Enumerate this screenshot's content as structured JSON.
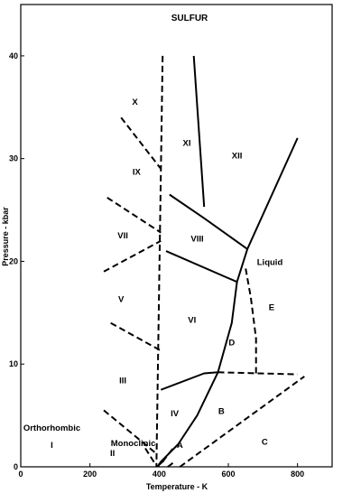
{
  "chart_data": {
    "type": "line",
    "title": "SULFUR",
    "xlabel": "Temperature - K",
    "ylabel": "Pressure - kbar",
    "xlim": [
      0,
      900
    ],
    "ylim": [
      0,
      45
    ],
    "xticks": [
      0,
      200,
      400,
      600,
      800
    ],
    "yticks": [
      0,
      10,
      20,
      30,
      40
    ],
    "grid": false,
    "legend": "none",
    "solid_boundaries": [
      {
        "x": [
          500,
          530
        ],
        "y": [
          40,
          25.3
        ]
      },
      {
        "x": [
          430,
          530,
          655
        ],
        "y": [
          26.5,
          24.2,
          21.2
        ]
      },
      {
        "x": [
          655,
          800
        ],
        "y": [
          21.2,
          32
        ]
      },
      {
        "x": [
          420,
          625,
          655
        ],
        "y": [
          21,
          18,
          21.2
        ]
      },
      {
        "x": [
          405,
          530,
          570
        ],
        "y": [
          7.5,
          9.1,
          9.2
        ]
      },
      {
        "x": [
          625,
          610,
          570,
          510,
          455,
          405,
          395
        ],
        "y": [
          18,
          14,
          9.2,
          5,
          2.2,
          0.5,
          0
        ]
      }
    ],
    "dashed_boundaries": [
      {
        "x": [
          410,
          392
        ],
        "y": [
          40,
          0
        ]
      },
      {
        "x": [
          290,
          405
        ],
        "y": [
          34,
          29
        ]
      },
      {
        "x": [
          250,
          405
        ],
        "y": [
          26.2,
          22.8
        ]
      },
      {
        "x": [
          240,
          405
        ],
        "y": [
          19,
          22
        ]
      },
      {
        "x": [
          260,
          405
        ],
        "y": [
          14,
          11.3
        ]
      },
      {
        "x": [
          240,
          395
        ],
        "y": [
          5.5,
          1.2
        ]
      },
      {
        "x": [
          650,
          665,
          680,
          680
        ],
        "y": [
          19.3,
          16.5,
          12.5,
          9
        ]
      },
      {
        "x": [
          570,
          800
        ],
        "y": [
          9.2,
          9
        ]
      },
      {
        "x": [
          460,
          820
        ],
        "y": [
          0,
          8.8
        ]
      },
      {
        "x": [
          400,
          420
        ],
        "y": [
          0.2,
          0.8
        ]
      },
      {
        "x": [
          410,
          440
        ],
        "y": [
          0.5,
          1.8
        ]
      },
      {
        "x": [
          425,
          445
        ],
        "y": [
          0,
          0.5
        ]
      },
      {
        "x": [
          360,
          390
        ],
        "y": [
          1.8,
          0.2
        ]
      }
    ],
    "region_labels": [
      {
        "text": "X",
        "x": 330,
        "y": 35.5
      },
      {
        "text": "XI",
        "x": 480,
        "y": 31.5
      },
      {
        "text": "XII",
        "x": 625,
        "y": 30.3
      },
      {
        "text": "IX",
        "x": 335,
        "y": 28.7
      },
      {
        "text": "VII",
        "x": 295,
        "y": 22.5
      },
      {
        "text": "VIII",
        "x": 510,
        "y": 22.2
      },
      {
        "text": "Liquid",
        "x": 720,
        "y": 19.9
      },
      {
        "text": "V",
        "x": 290,
        "y": 16.3
      },
      {
        "text": "E",
        "x": 725,
        "y": 15.5
      },
      {
        "text": "VI",
        "x": 495,
        "y": 14.3
      },
      {
        "text": "D",
        "x": 610,
        "y": 12.1
      },
      {
        "text": "III",
        "x": 295,
        "y": 8.4
      },
      {
        "text": "IV",
        "x": 445,
        "y": 5.2
      },
      {
        "text": "B",
        "x": 580,
        "y": 5.4
      },
      {
        "text": "Orthorhombic",
        "x": 90,
        "y": 3.8
      },
      {
        "text": "Monoclinic",
        "x": 325,
        "y": 2.3
      },
      {
        "text": "I",
        "x": 90,
        "y": 2.1
      },
      {
        "text": "A",
        "x": 460,
        "y": 2.1
      },
      {
        "text": "C",
        "x": 705,
        "y": 2.4
      },
      {
        "text": "II",
        "x": 265,
        "y": 1.3
      }
    ]
  }
}
